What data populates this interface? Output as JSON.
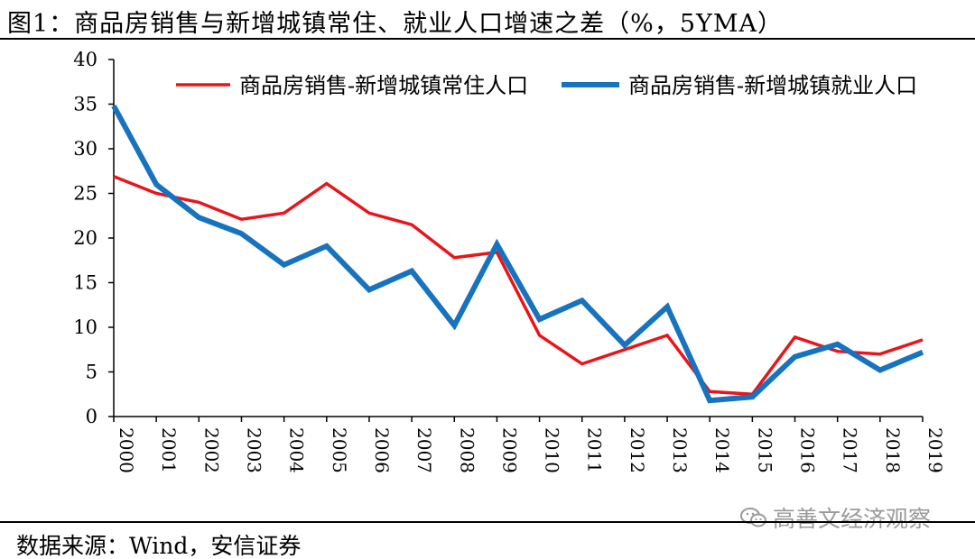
{
  "header": {
    "title": "图1：商品房销售与新增城镇常住、就业人口增速之差（%，5YMA）"
  },
  "footer": {
    "source": "数据来源：Wind，安信证券",
    "watermark": "高善文经济观察"
  },
  "chart_data": {
    "type": "line",
    "x": [
      "2000",
      "2001",
      "2002",
      "2003",
      "2004",
      "2005",
      "2006",
      "2007",
      "2008",
      "2009",
      "2010",
      "2011",
      "2012",
      "2013",
      "2014",
      "2015",
      "2016",
      "2017",
      "2018",
      "2019"
    ],
    "series": [
      {
        "name": "商品房销售-新增城镇常住人口",
        "color": "#e8151b",
        "values": [
          26.9,
          25.0,
          24.0,
          22.1,
          22.8,
          26.1,
          22.8,
          21.5,
          17.8,
          18.4,
          9.1,
          5.9,
          7.5,
          9.1,
          2.8,
          2.5,
          8.9,
          7.3,
          7.0,
          8.6
        ]
      },
      {
        "name": "商品房销售-新增城镇就业人口",
        "color": "#1873bf",
        "values": [
          34.8,
          26.0,
          22.3,
          20.5,
          17.0,
          19.1,
          14.2,
          16.3,
          10.2,
          19.3,
          10.9,
          13.0,
          8.0,
          12.3,
          1.8,
          2.2,
          6.7,
          8.1,
          5.2,
          7.2
        ]
      }
    ],
    "yticks": [
      "0",
      "5",
      "10",
      "15",
      "20",
      "25",
      "30",
      "35",
      "40"
    ],
    "ylim": [
      0,
      40
    ],
    "grid": false,
    "legend": "top-right"
  },
  "icons": {
    "watermark": "wechat-icon"
  }
}
